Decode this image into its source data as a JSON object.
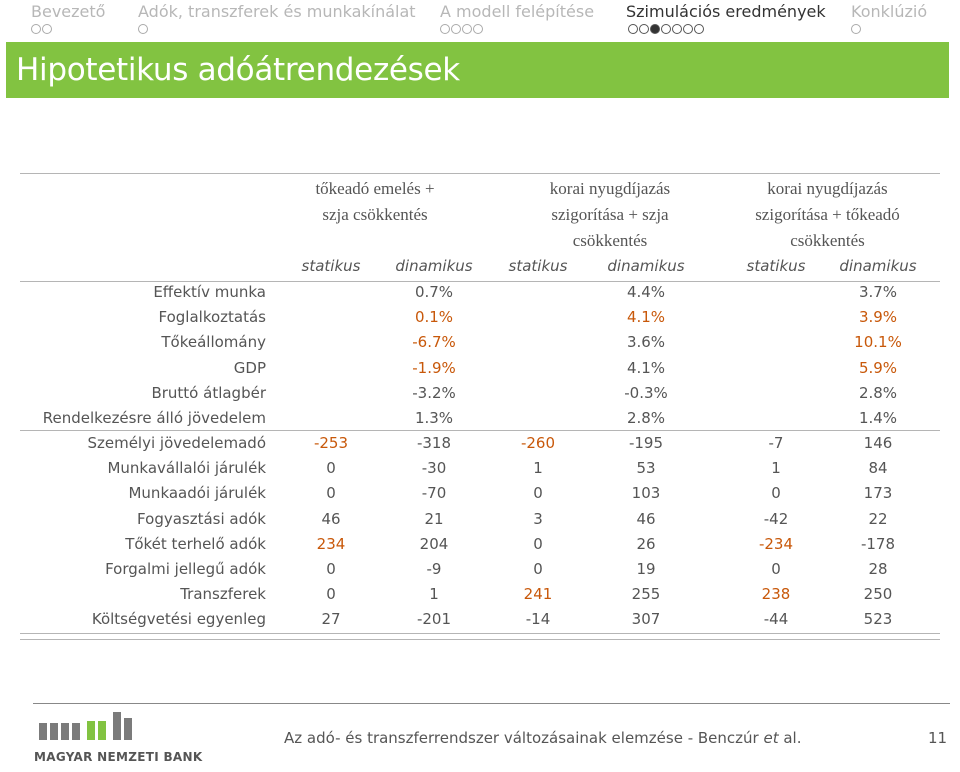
{
  "nav": {
    "items": [
      {
        "label": "Bevezető",
        "dots": 2,
        "filled": -1,
        "active": false
      },
      {
        "label": "Adók, transzferek és munkakínálat",
        "dots": 1,
        "filled": -1,
        "active": false
      },
      {
        "label": "A modell felépítése",
        "dots": 4,
        "filled": -1,
        "active": false
      },
      {
        "label": "Szimulációs eredmények",
        "dots": 7,
        "filled": 2,
        "active": true
      },
      {
        "label": "Konklúzió",
        "dots": 1,
        "filled": -1,
        "active": false
      }
    ]
  },
  "title": "Hipotetikus adóátrendezések",
  "table": {
    "groups": [
      {
        "line1": "tőkeadó emelés +",
        "line2": "szja csökkentés",
        "line3": ""
      },
      {
        "line1": "korai nyugdíjazás",
        "line2": "szigorítása + szja",
        "line3": "csökkentés"
      },
      {
        "line1": "korai nyugdíjazás",
        "line2": "szigorítása + tőkeadó",
        "line3": "csökkentés"
      }
    ],
    "subheaders": [
      "statikus",
      "dinamikus",
      "statikus",
      "dinamikus",
      "statikus",
      "dinamikus"
    ],
    "section1": [
      {
        "label": "Effektív munka",
        "cells": [
          "",
          "0.7%",
          "",
          "4.4%",
          "",
          "3.7%"
        ],
        "hl": [
          false,
          false,
          false,
          false,
          false,
          false
        ]
      },
      {
        "label": "Foglalkoztatás",
        "cells": [
          "",
          "0.1%",
          "",
          "4.1%",
          "",
          "3.9%"
        ],
        "hl": [
          false,
          true,
          false,
          true,
          false,
          true
        ]
      },
      {
        "label": "Tőkeállomány",
        "cells": [
          "",
          "-6.7%",
          "",
          "3.6%",
          "",
          "10.1%"
        ],
        "hl": [
          false,
          true,
          false,
          false,
          false,
          true
        ]
      },
      {
        "label": "GDP",
        "cells": [
          "",
          "-1.9%",
          "",
          "4.1%",
          "",
          "5.9%"
        ],
        "hl": [
          false,
          true,
          false,
          false,
          false,
          true
        ]
      },
      {
        "label": "Bruttó átlagbér",
        "cells": [
          "",
          "-3.2%",
          "",
          "-0.3%",
          "",
          "2.8%"
        ],
        "hl": [
          false,
          false,
          false,
          false,
          false,
          false
        ]
      },
      {
        "label": "Rendelkezésre álló jövedelem",
        "cells": [
          "",
          "1.3%",
          "",
          "2.8%",
          "",
          "1.4%"
        ],
        "hl": [
          false,
          false,
          false,
          false,
          false,
          false
        ]
      }
    ],
    "section2": [
      {
        "label": "Személyi jövedelemadó",
        "cells": [
          "-253",
          "-318",
          "-260",
          "-195",
          "-7",
          "146"
        ],
        "hl": [
          true,
          false,
          true,
          false,
          false,
          false
        ]
      },
      {
        "label": "Munkavállalói járulék",
        "cells": [
          "0",
          "-30",
          "1",
          "53",
          "1",
          "84"
        ],
        "hl": [
          false,
          false,
          false,
          false,
          false,
          false
        ]
      },
      {
        "label": "Munkaadói járulék",
        "cells": [
          "0",
          "-70",
          "0",
          "103",
          "0",
          "173"
        ],
        "hl": [
          false,
          false,
          false,
          false,
          false,
          false
        ]
      },
      {
        "label": "Fogyasztási adók",
        "cells": [
          "46",
          "21",
          "3",
          "46",
          "-42",
          "22"
        ],
        "hl": [
          false,
          false,
          false,
          false,
          false,
          false
        ]
      },
      {
        "label": "Tőkét terhelő adók",
        "cells": [
          "234",
          "204",
          "0",
          "26",
          "-234",
          "-178"
        ],
        "hl": [
          true,
          false,
          false,
          false,
          true,
          false
        ]
      },
      {
        "label": "Forgalmi jellegű adók",
        "cells": [
          "0",
          "-9",
          "0",
          "19",
          "0",
          "28"
        ],
        "hl": [
          false,
          false,
          false,
          false,
          false,
          false
        ]
      },
      {
        "label": "Transzferek",
        "cells": [
          "0",
          "1",
          "241",
          "255",
          "238",
          "250"
        ],
        "hl": [
          false,
          false,
          true,
          false,
          true,
          false
        ]
      },
      {
        "label": "Költségvetési egyenleg",
        "cells": [
          "27",
          "-201",
          "-14",
          "307",
          "-44",
          "523"
        ],
        "hl": [
          false,
          false,
          false,
          false,
          false,
          false
        ]
      }
    ]
  },
  "footer": {
    "logo_text": "MAGYAR NEMZETI BANK",
    "text_before": "Az adó- és transzferrendszer változásainak elemzése - Benczúr ",
    "text_italic": "et",
    "text_after": " al.",
    "page_number": "11"
  },
  "colors": {
    "accent": "#82c341",
    "highlight": "#c8580a"
  }
}
